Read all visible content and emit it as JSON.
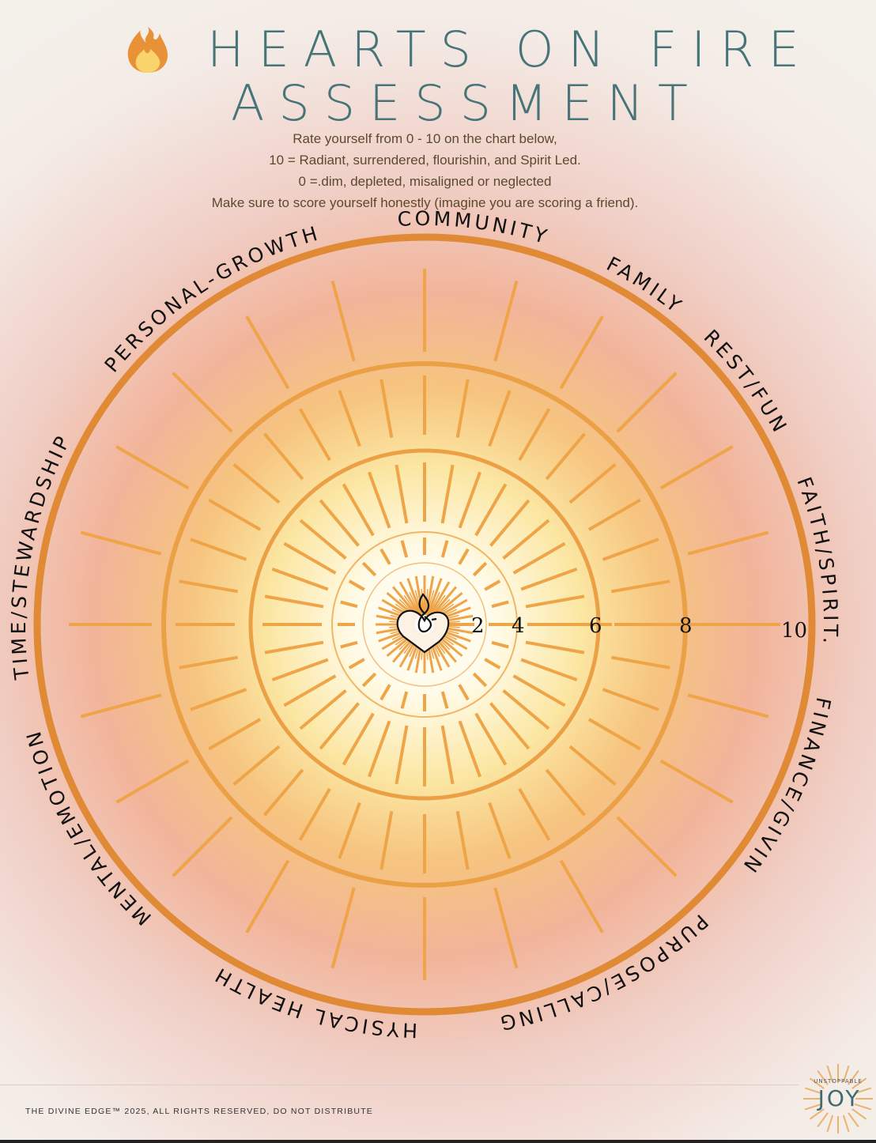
{
  "header": {
    "icon": "fire-icon",
    "title_line1": "HEARTS ON FIRE",
    "title_line2": "ASSESSMENT"
  },
  "instructions": [
    "Rate yourself from 0 - 10 on the chart below,",
    "10 = Radiant, surrendered, flourishin, and Spirit Led.",
    "0 =.dim, depleted, misaligned or neglected",
    "Make sure to score yourself honestly (imagine you are scoring a friend)."
  ],
  "wheel": {
    "categories": [
      "COMMUNITY",
      "FAMILY",
      "REST/FUN",
      "FAITH/SPIRIT.",
      "FINANCE/GIVIN",
      "PURPOSE/CALLING",
      "PHYSICAL HEALTH",
      "MENTAL/EMOTION",
      "TIME/STEWARDSHIP",
      "PERSONAL-GROWTH"
    ],
    "scale": [
      "2",
      "4",
      "6",
      "8",
      "10"
    ],
    "center_icon": "flame-heart-icon",
    "colors": {
      "ring": "#e08a35",
      "spoke": "#eea447",
      "title": "#467478"
    }
  },
  "footer": {
    "copyright": "THE DIVINE EDGE™ 2025, ALL RIGHTS RESERVED, DO NOT DISTRIBUTE",
    "logo_small": "UNSTOPPABLE",
    "logo_big": "JOY"
  }
}
